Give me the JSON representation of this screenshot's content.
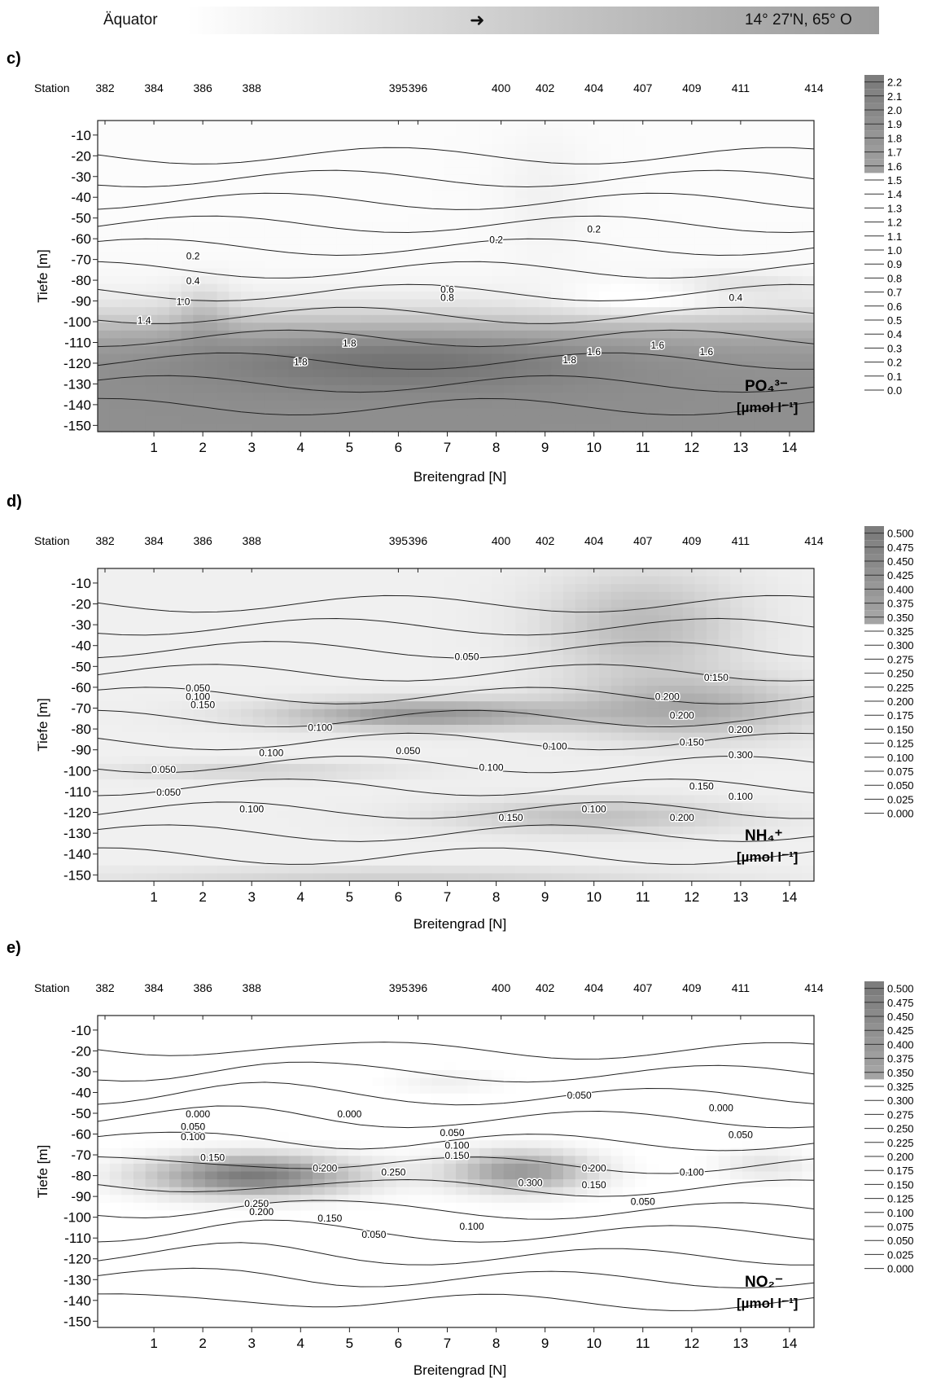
{
  "banner": {
    "left": "Äquator",
    "arrow": "➜",
    "right": "14° 27'N, 65° O"
  },
  "panels": [
    {
      "letter": "c)",
      "station_label": "Station",
      "ylabel": "Tiefe [m]",
      "xlabel": "Breitengrad [N]",
      "species": "PO₄³⁻",
      "unit": "[µmol l⁻¹]",
      "legend": [
        "2.2",
        "2.1",
        "2.0",
        "1.9",
        "1.8",
        "1.7",
        "1.6",
        "1.5",
        "1.4",
        "1.3",
        "1.2",
        "1.1",
        "1.0",
        "0.9",
        "0.8",
        "0.7",
        "0.6",
        "0.5",
        "0.4",
        "0.3",
        "0.2",
        "0.1",
        "0.0"
      ]
    },
    {
      "letter": "d)",
      "station_label": "Station",
      "ylabel": "Tiefe [m]",
      "xlabel": "Breitengrad [N]",
      "species": "NH₄⁺",
      "unit": "[µmol l⁻¹]",
      "legend": [
        "0.500",
        "0.475",
        "0.450",
        "0.425",
        "0.400",
        "0.375",
        "0.350",
        "0.325",
        "0.300",
        "0.275",
        "0.250",
        "0.225",
        "0.200",
        "0.175",
        "0.150",
        "0.125",
        "0.100",
        "0.075",
        "0.050",
        "0.025",
        "0.000"
      ]
    },
    {
      "letter": "e)",
      "station_label": "Station",
      "ylabel": "Tiefe [m]",
      "xlabel": "Breitengrad [N]",
      "species": "NO₂⁻",
      "unit": "[µmol l⁻¹]",
      "legend": [
        "0.500",
        "0.475",
        "0.450",
        "0.425",
        "0.400",
        "0.375",
        "0.350",
        "0.325",
        "0.300",
        "0.275",
        "0.250",
        "0.225",
        "0.200",
        "0.175",
        "0.150",
        "0.125",
        "0.100",
        "0.075",
        "0.050",
        "0.025",
        "0.000"
      ]
    }
  ],
  "chart_data": [
    {
      "type": "heatmap",
      "panel": "c)",
      "x_ticks": [
        "1",
        "2",
        "3",
        "4",
        "5",
        "6",
        "7",
        "8",
        "9",
        "10",
        "11",
        "12",
        "13",
        "14"
      ],
      "y_ticks": [
        "-10",
        "-20",
        "-30",
        "-40",
        "-50",
        "-60",
        "-70",
        "-80",
        "-90",
        "-100",
        "-110",
        "-120",
        "-130",
        "-140",
        "-150"
      ],
      "xlim": [
        -0.15,
        14.5
      ],
      "ylim": [
        -153,
        -3
      ],
      "stations": [
        {
          "name": "382",
          "lat": 0.0
        },
        {
          "name": "384",
          "lat": 1.0
        },
        {
          "name": "386",
          "lat": 2.0
        },
        {
          "name": "388",
          "lat": 3.0
        },
        {
          "name": "395",
          "lat": 6.0
        },
        {
          "name": "396",
          "lat": 6.4
        },
        {
          "name": "400",
          "lat": 8.1
        },
        {
          "name": "402",
          "lat": 9.0
        },
        {
          "name": "404",
          "lat": 10.0
        },
        {
          "name": "407",
          "lat": 11.0
        },
        {
          "name": "409",
          "lat": 12.0
        },
        {
          "name": "411",
          "lat": 13.0
        },
        {
          "name": "414",
          "lat": 14.5
        }
      ],
      "contour_labels": [
        {
          "text": "0.2",
          "lat": 1.8,
          "depth": -70
        },
        {
          "text": "0.2",
          "lat": 8.0,
          "depth": -62
        },
        {
          "text": "0.2",
          "lat": 10.0,
          "depth": -57
        },
        {
          "text": "0.4",
          "lat": 1.8,
          "depth": -82
        },
        {
          "text": "0.6",
          "lat": 7.0,
          "depth": -86
        },
        {
          "text": "0.8",
          "lat": 7.0,
          "depth": -90
        },
        {
          "text": "1.0",
          "lat": 1.6,
          "depth": -92
        },
        {
          "text": "1.4",
          "lat": 0.8,
          "depth": -101
        },
        {
          "text": "0.4",
          "lat": 12.9,
          "depth": -90
        },
        {
          "text": "1.8",
          "lat": 5.0,
          "depth": -112
        },
        {
          "text": "1.8",
          "lat": 4.0,
          "depth": -121
        },
        {
          "text": "1.8",
          "lat": 9.5,
          "depth": -120
        },
        {
          "text": "1.6",
          "lat": 10.0,
          "depth": -116
        },
        {
          "text": "1.6",
          "lat": 11.3,
          "depth": -113
        },
        {
          "text": "1.6",
          "lat": 12.3,
          "depth": -116
        }
      ]
    },
    {
      "type": "heatmap",
      "panel": "d)",
      "x_ticks": [
        "1",
        "2",
        "3",
        "4",
        "5",
        "6",
        "7",
        "8",
        "9",
        "10",
        "11",
        "12",
        "13",
        "14"
      ],
      "y_ticks": [
        "-10",
        "-20",
        "-30",
        "-40",
        "-50",
        "-60",
        "-70",
        "-80",
        "-90",
        "-100",
        "-110",
        "-120",
        "-130",
        "-140",
        "-150"
      ],
      "xlim": [
        -0.15,
        14.5
      ],
      "ylim": [
        -153,
        -3
      ],
      "stations": [
        {
          "name": "382",
          "lat": 0.0
        },
        {
          "name": "384",
          "lat": 1.0
        },
        {
          "name": "386",
          "lat": 2.0
        },
        {
          "name": "388",
          "lat": 3.0
        },
        {
          "name": "395",
          "lat": 6.0
        },
        {
          "name": "396",
          "lat": 6.4
        },
        {
          "name": "400",
          "lat": 8.1
        },
        {
          "name": "402",
          "lat": 9.0
        },
        {
          "name": "404",
          "lat": 10.0
        },
        {
          "name": "407",
          "lat": 11.0
        },
        {
          "name": "409",
          "lat": 12.0
        },
        {
          "name": "411",
          "lat": 13.0
        },
        {
          "name": "414",
          "lat": 14.5
        }
      ],
      "contour_labels": [
        {
          "text": "0.050",
          "lat": 7.4,
          "depth": -47
        },
        {
          "text": "0.150",
          "lat": 12.5,
          "depth": -57
        },
        {
          "text": "0.050",
          "lat": 1.9,
          "depth": -62
        },
        {
          "text": "0.100",
          "lat": 1.9,
          "depth": -66
        },
        {
          "text": "0.150",
          "lat": 2.0,
          "depth": -70
        },
        {
          "text": "0.200",
          "lat": 11.5,
          "depth": -66
        },
        {
          "text": "0.200",
          "lat": 11.8,
          "depth": -75
        },
        {
          "text": "0.200",
          "lat": 13.0,
          "depth": -82
        },
        {
          "text": "0.100",
          "lat": 4.4,
          "depth": -81
        },
        {
          "text": "0.100",
          "lat": 3.4,
          "depth": -93
        },
        {
          "text": "0.050",
          "lat": 6.2,
          "depth": -92
        },
        {
          "text": "0.100",
          "lat": 9.2,
          "depth": -90
        },
        {
          "text": "0.150",
          "lat": 12.0,
          "depth": -88
        },
        {
          "text": "0.300",
          "lat": 13.0,
          "depth": -94
        },
        {
          "text": "0.050",
          "lat": 1.2,
          "depth": -101
        },
        {
          "text": "0.050",
          "lat": 1.3,
          "depth": -112
        },
        {
          "text": "0.100",
          "lat": 7.9,
          "depth": -100
        },
        {
          "text": "0.150",
          "lat": 12.2,
          "depth": -109
        },
        {
          "text": "0.100",
          "lat": 13.0,
          "depth": -114
        },
        {
          "text": "0.100",
          "lat": 3.0,
          "depth": -120
        },
        {
          "text": "0.150",
          "lat": 8.3,
          "depth": -124
        },
        {
          "text": "0.100",
          "lat": 10.0,
          "depth": -120
        },
        {
          "text": "0.200",
          "lat": 11.8,
          "depth": -124
        }
      ]
    },
    {
      "type": "heatmap",
      "panel": "e)",
      "x_ticks": [
        "1",
        "2",
        "3",
        "4",
        "5",
        "6",
        "7",
        "8",
        "9",
        "10",
        "11",
        "12",
        "13",
        "14"
      ],
      "y_ticks": [
        "-10",
        "-20",
        "-30",
        "-40",
        "-50",
        "-60",
        "-70",
        "-80",
        "-90",
        "-100",
        "-110",
        "-120",
        "-130",
        "-140",
        "-150"
      ],
      "xlim": [
        -0.15,
        14.5
      ],
      "ylim": [
        -153,
        -3
      ],
      "stations": [
        {
          "name": "382",
          "lat": 0.0
        },
        {
          "name": "384",
          "lat": 1.0
        },
        {
          "name": "386",
          "lat": 2.0
        },
        {
          "name": "388",
          "lat": 3.0
        },
        {
          "name": "395",
          "lat": 6.0
        },
        {
          "name": "396",
          "lat": 6.4
        },
        {
          "name": "400",
          "lat": 8.1
        },
        {
          "name": "402",
          "lat": 9.0
        },
        {
          "name": "404",
          "lat": 10.0
        },
        {
          "name": "407",
          "lat": 11.0
        },
        {
          "name": "409",
          "lat": 12.0
        },
        {
          "name": "411",
          "lat": 13.0
        },
        {
          "name": "414",
          "lat": 14.5
        }
      ],
      "contour_labels": [
        {
          "text": "0.000",
          "lat": 1.9,
          "depth": -52
        },
        {
          "text": "0.000",
          "lat": 5.0,
          "depth": -52
        },
        {
          "text": "0.050",
          "lat": 9.7,
          "depth": -43
        },
        {
          "text": "0.000",
          "lat": 12.6,
          "depth": -49
        },
        {
          "text": "0.050",
          "lat": 1.8,
          "depth": -58
        },
        {
          "text": "0.050",
          "lat": 7.1,
          "depth": -61
        },
        {
          "text": "0.050",
          "lat": 13.0,
          "depth": -62
        },
        {
          "text": "0.100",
          "lat": 1.8,
          "depth": -63
        },
        {
          "text": "0.150",
          "lat": 2.2,
          "depth": -73
        },
        {
          "text": "0.100",
          "lat": 7.2,
          "depth": -67
        },
        {
          "text": "0.150",
          "lat": 7.2,
          "depth": -72
        },
        {
          "text": "0.200",
          "lat": 4.5,
          "depth": -78
        },
        {
          "text": "0.250",
          "lat": 5.9,
          "depth": -80
        },
        {
          "text": "0.200",
          "lat": 10.0,
          "depth": -78
        },
        {
          "text": "0.150",
          "lat": 10.0,
          "depth": -86
        },
        {
          "text": "0.100",
          "lat": 12.0,
          "depth": -80
        },
        {
          "text": "0.300",
          "lat": 8.7,
          "depth": -85
        },
        {
          "text": "0.050",
          "lat": 11.0,
          "depth": -94
        },
        {
          "text": "0.250",
          "lat": 3.1,
          "depth": -95
        },
        {
          "text": "0.200",
          "lat": 3.2,
          "depth": -99
        },
        {
          "text": "0.150",
          "lat": 4.6,
          "depth": -102
        },
        {
          "text": "0.100",
          "lat": 7.5,
          "depth": -106
        },
        {
          "text": "0.050",
          "lat": 5.5,
          "depth": -110
        }
      ]
    }
  ]
}
